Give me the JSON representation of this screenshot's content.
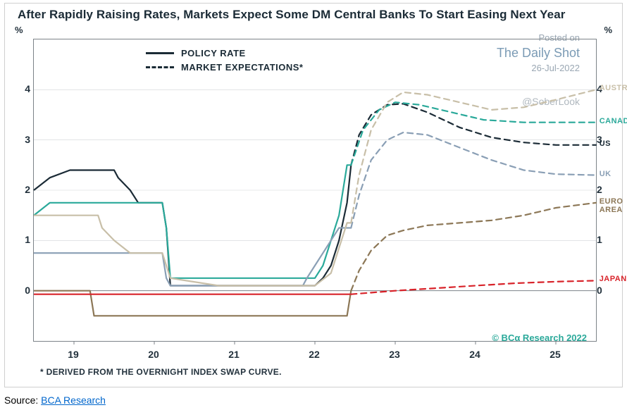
{
  "chart": {
    "title": "After Rapidly Raising Rates, Markets Expect Some DM Central Banks To Start Easing Next Year",
    "y_unit": "%",
    "legend": {
      "solid_label": "POLICY RATE",
      "dash_label": "MARKET EXPECTATIONS*"
    },
    "footnote": "* DERIVED FROM THE OVERNIGHT INDEX SWAP CURVE.",
    "copyright": "© BCα Research 2022",
    "ylim": [
      -1,
      5
    ],
    "ytick_step": 1,
    "yticks": [
      0,
      1,
      2,
      3,
      4
    ],
    "xlim": [
      2018.5,
      2025.5
    ],
    "xticks": [
      19,
      20,
      21,
      22,
      23,
      24,
      25
    ],
    "grid_color": "#d0d4d7",
    "axis_color": "#7c8388",
    "background_color": "#ffffff",
    "series": [
      {
        "name": "US",
        "label": "US",
        "color": "#1b2b36",
        "line_width": 2.2,
        "label_pos": {
          "x": 2025.55,
          "y": 2.9
        },
        "solid_points": [
          [
            2018.5,
            2.0
          ],
          [
            2018.7,
            2.25
          ],
          [
            2018.95,
            2.4
          ],
          [
            2019.0,
            2.4
          ],
          [
            2019.5,
            2.4
          ],
          [
            2019.55,
            2.25
          ],
          [
            2019.7,
            2.0
          ],
          [
            2019.8,
            1.75
          ],
          [
            2020.1,
            1.75
          ],
          [
            2020.15,
            1.25
          ],
          [
            2020.2,
            0.1
          ],
          [
            2021.0,
            0.1
          ],
          [
            2021.9,
            0.1
          ],
          [
            2022.0,
            0.1
          ],
          [
            2022.1,
            0.25
          ],
          [
            2022.2,
            0.5
          ],
          [
            2022.3,
            1.0
          ],
          [
            2022.4,
            1.75
          ],
          [
            2022.45,
            2.5
          ]
        ],
        "dash_points": [
          [
            2022.45,
            2.5
          ],
          [
            2022.55,
            3.1
          ],
          [
            2022.7,
            3.5
          ],
          [
            2022.9,
            3.7
          ],
          [
            2023.1,
            3.72
          ],
          [
            2023.4,
            3.55
          ],
          [
            2023.8,
            3.25
          ],
          [
            2024.2,
            3.05
          ],
          [
            2024.6,
            2.95
          ],
          [
            2025.0,
            2.9
          ],
          [
            2025.5,
            2.9
          ]
        ]
      },
      {
        "name": "CANADA",
        "label": "CANADA",
        "color": "#2aa99a",
        "line_width": 2.2,
        "label_pos": {
          "x": 2025.55,
          "y": 3.35
        },
        "solid_points": [
          [
            2018.5,
            1.5
          ],
          [
            2018.7,
            1.75
          ],
          [
            2019.0,
            1.75
          ],
          [
            2019.8,
            1.75
          ],
          [
            2020.1,
            1.75
          ],
          [
            2020.15,
            1.25
          ],
          [
            2020.2,
            0.25
          ],
          [
            2021.0,
            0.25
          ],
          [
            2021.9,
            0.25
          ],
          [
            2022.0,
            0.25
          ],
          [
            2022.1,
            0.5
          ],
          [
            2022.2,
            1.0
          ],
          [
            2022.3,
            1.5
          ],
          [
            2022.4,
            2.5
          ],
          [
            2022.45,
            2.5
          ]
        ],
        "dash_points": [
          [
            2022.45,
            2.5
          ],
          [
            2022.6,
            3.2
          ],
          [
            2022.8,
            3.6
          ],
          [
            2023.0,
            3.75
          ],
          [
            2023.3,
            3.7
          ],
          [
            2023.7,
            3.55
          ],
          [
            2024.1,
            3.4
          ],
          [
            2024.6,
            3.35
          ],
          [
            2025.0,
            3.35
          ],
          [
            2025.5,
            3.35
          ]
        ]
      },
      {
        "name": "UK",
        "label": "UK",
        "color": "#8a9fb5",
        "line_width": 2.2,
        "label_pos": {
          "x": 2025.55,
          "y": 2.3
        },
        "solid_points": [
          [
            2018.5,
            0.75
          ],
          [
            2019.0,
            0.75
          ],
          [
            2019.8,
            0.75
          ],
          [
            2020.1,
            0.75
          ],
          [
            2020.15,
            0.25
          ],
          [
            2020.2,
            0.1
          ],
          [
            2021.0,
            0.1
          ],
          [
            2021.85,
            0.1
          ],
          [
            2021.9,
            0.25
          ],
          [
            2022.0,
            0.5
          ],
          [
            2022.1,
            0.75
          ],
          [
            2022.2,
            1.0
          ],
          [
            2022.3,
            1.25
          ],
          [
            2022.45,
            1.25
          ]
        ],
        "dash_points": [
          [
            2022.45,
            1.25
          ],
          [
            2022.55,
            1.9
          ],
          [
            2022.7,
            2.6
          ],
          [
            2022.9,
            3.0
          ],
          [
            2023.1,
            3.15
          ],
          [
            2023.4,
            3.1
          ],
          [
            2023.8,
            2.85
          ],
          [
            2024.2,
            2.6
          ],
          [
            2024.6,
            2.4
          ],
          [
            2025.0,
            2.32
          ],
          [
            2025.5,
            2.3
          ]
        ]
      },
      {
        "name": "AUSTRALIA",
        "label": "AUSTRALIA",
        "color": "#c8bfa8",
        "line_width": 2.2,
        "label_pos": {
          "x": 2025.55,
          "y": 4.0
        },
        "solid_points": [
          [
            2018.5,
            1.5
          ],
          [
            2019.0,
            1.5
          ],
          [
            2019.3,
            1.5
          ],
          [
            2019.35,
            1.25
          ],
          [
            2019.5,
            1.0
          ],
          [
            2019.7,
            0.75
          ],
          [
            2020.1,
            0.75
          ],
          [
            2020.15,
            0.5
          ],
          [
            2020.2,
            0.25
          ],
          [
            2020.8,
            0.1
          ],
          [
            2021.0,
            0.1
          ],
          [
            2021.9,
            0.1
          ],
          [
            2022.0,
            0.1
          ],
          [
            2022.2,
            0.35
          ],
          [
            2022.3,
            0.85
          ],
          [
            2022.4,
            1.35
          ],
          [
            2022.45,
            1.35
          ]
        ],
        "dash_points": [
          [
            2022.45,
            1.35
          ],
          [
            2022.55,
            2.3
          ],
          [
            2022.7,
            3.2
          ],
          [
            2022.9,
            3.75
          ],
          [
            2023.1,
            3.95
          ],
          [
            2023.4,
            3.9
          ],
          [
            2023.8,
            3.75
          ],
          [
            2024.2,
            3.6
          ],
          [
            2024.6,
            3.65
          ],
          [
            2025.0,
            3.8
          ],
          [
            2025.5,
            4.0
          ]
        ]
      },
      {
        "name": "EURO AREA",
        "label": "EURO AREA",
        "color": "#8c7756",
        "line_width": 2.2,
        "label_pos": {
          "x": 2025.55,
          "y": 1.75
        },
        "solid_points": [
          [
            2018.5,
            0.0
          ],
          [
            2019.0,
            0.0
          ],
          [
            2019.2,
            0.0
          ],
          [
            2019.25,
            -0.5
          ],
          [
            2020.0,
            -0.5
          ],
          [
            2021.0,
            -0.5
          ],
          [
            2021.9,
            -0.5
          ],
          [
            2022.0,
            -0.5
          ],
          [
            2022.4,
            -0.5
          ],
          [
            2022.45,
            0.0
          ]
        ],
        "dash_points": [
          [
            2022.45,
            0.0
          ],
          [
            2022.55,
            0.4
          ],
          [
            2022.7,
            0.8
          ],
          [
            2022.9,
            1.1
          ],
          [
            2023.1,
            1.2
          ],
          [
            2023.4,
            1.3
          ],
          [
            2023.8,
            1.35
          ],
          [
            2024.2,
            1.4
          ],
          [
            2024.6,
            1.5
          ],
          [
            2025.0,
            1.65
          ],
          [
            2025.5,
            1.75
          ]
        ]
      },
      {
        "name": "JAPAN",
        "label": "JAPAN",
        "color": "#d8232a",
        "line_width": 2.2,
        "label_pos": {
          "x": 2025.55,
          "y": 0.2
        },
        "solid_points": [
          [
            2018.5,
            -0.07
          ],
          [
            2019.0,
            -0.07
          ],
          [
            2020.0,
            -0.07
          ],
          [
            2021.0,
            -0.07
          ],
          [
            2022.0,
            -0.07
          ],
          [
            2022.45,
            -0.07
          ]
        ],
        "dash_points": [
          [
            2022.45,
            -0.07
          ],
          [
            2023.0,
            0.0
          ],
          [
            2023.5,
            0.05
          ],
          [
            2024.0,
            0.1
          ],
          [
            2024.5,
            0.15
          ],
          [
            2025.0,
            0.18
          ],
          [
            2025.5,
            0.2
          ]
        ]
      }
    ]
  },
  "watermark": {
    "line1": "Posted on",
    "brand": "The Daily Shot",
    "date": "26-Jul-2022",
    "handle": "@SoberLook"
  },
  "source": {
    "prefix": "Source: ",
    "link_text": "BCA Research"
  }
}
